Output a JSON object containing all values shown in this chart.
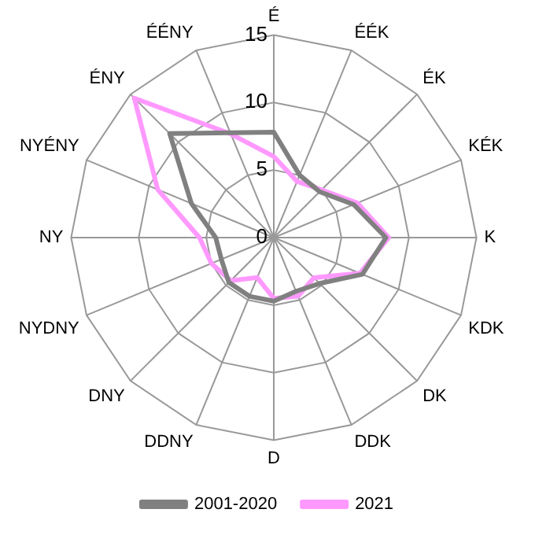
{
  "chart_data": {
    "type": "radar",
    "categories": [
      "É",
      "ÉÉK",
      "ÉK",
      "KÉK",
      "K",
      "KDK",
      "DK",
      "DDK",
      "D",
      "DDNY",
      "DNY",
      "NYDNY",
      "NY",
      "NYÉNY",
      "ÉNY",
      "ÉÉNY"
    ],
    "series": [
      {
        "name": "2001-2020",
        "color": "#808080",
        "values": [
          7.8,
          5.0,
          4.8,
          6.4,
          8.3,
          7.1,
          4.8,
          4.3,
          4.7,
          4.7,
          4.7,
          4.2,
          4.3,
          6.6,
          10.9,
          8.4
        ]
      },
      {
        "name": "2021",
        "color": "#ff99ff",
        "values": [
          6.0,
          4.5,
          5.0,
          6.7,
          8.5,
          6.9,
          4.2,
          4.7,
          4.5,
          3.2,
          4.5,
          5.0,
          5.5,
          9.3,
          14.6,
          8.3
        ]
      }
    ],
    "ylim": [
      0,
      15
    ],
    "yticks": [
      0,
      5,
      10,
      15
    ],
    "grid": true,
    "legend": "bottom",
    "marker": "none"
  }
}
